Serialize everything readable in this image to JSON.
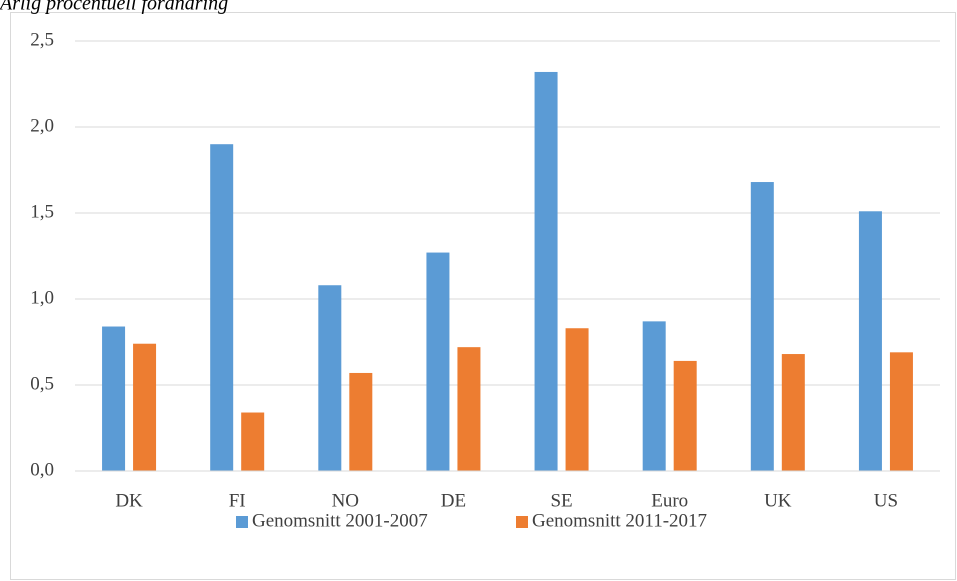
{
  "chart_data": {
    "type": "bar",
    "title": "Årlig procentuell förändring",
    "categories": [
      "DK",
      "FI",
      "NO",
      "DE",
      "SE",
      "Euro",
      "UK",
      "US"
    ],
    "series": [
      {
        "name": "Genomsnitt 2001-2007",
        "color": "#5b9bd5",
        "values": [
          0.84,
          1.9,
          1.08,
          1.27,
          2.32,
          0.87,
          1.68,
          1.51
        ]
      },
      {
        "name": "Genomsnitt 2011-2017",
        "color": "#ed7d31",
        "values": [
          0.74,
          0.34,
          0.57,
          0.72,
          0.83,
          0.64,
          0.68,
          0.69
        ]
      }
    ],
    "ylim": [
      0,
      2.5
    ],
    "yticks": [
      {
        "value": 0,
        "label": "0,0"
      },
      {
        "value": 0.5,
        "label": "0,5"
      },
      {
        "value": 1,
        "label": "1,0"
      },
      {
        "value": 1.5,
        "label": "1,5"
      },
      {
        "value": 2,
        "label": "2,0"
      },
      {
        "value": 2.5,
        "label": "2,5"
      }
    ],
    "grid": true,
    "legend": "bottom"
  }
}
